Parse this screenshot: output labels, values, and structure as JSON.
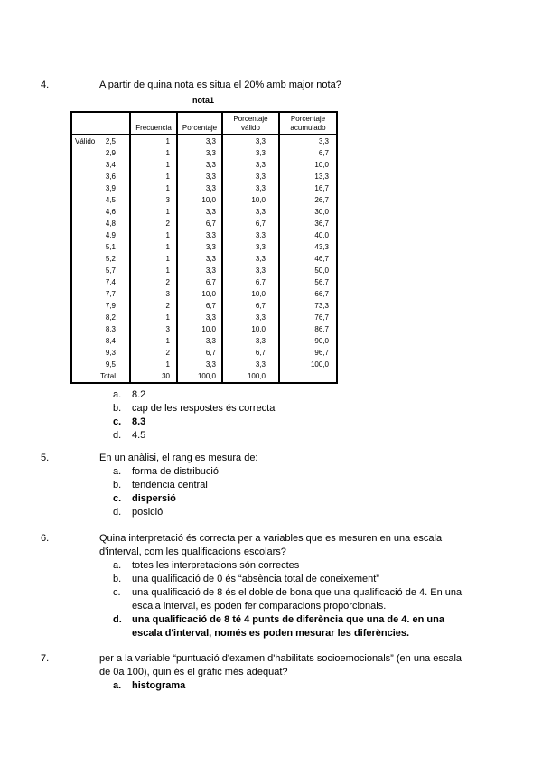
{
  "document": {
    "background": "#ffffff",
    "text_color": "#000000"
  },
  "table": {
    "title": "nota1",
    "row_section_label": "Válido",
    "headers": {
      "frequency": "Frecuencia",
      "percent": "Porcentaje",
      "valid_percent": "Porcentaje válido",
      "cum_percent": "Porcentaje acumulado"
    },
    "rows": [
      [
        "2,5",
        "1",
        "3,3",
        "3,3",
        "3,3"
      ],
      [
        "2,9",
        "1",
        "3,3",
        "3,3",
        "6,7"
      ],
      [
        "3,4",
        "1",
        "3,3",
        "3,3",
        "10,0"
      ],
      [
        "3,6",
        "1",
        "3,3",
        "3,3",
        "13,3"
      ],
      [
        "3,9",
        "1",
        "3,3",
        "3,3",
        "16,7"
      ],
      [
        "4,5",
        "3",
        "10,0",
        "10,0",
        "26,7"
      ],
      [
        "4,6",
        "1",
        "3,3",
        "3,3",
        "30,0"
      ],
      [
        "4,8",
        "2",
        "6,7",
        "6,7",
        "36,7"
      ],
      [
        "4,9",
        "1",
        "3,3",
        "3,3",
        "40,0"
      ],
      [
        "5,1",
        "1",
        "3,3",
        "3,3",
        "43,3"
      ],
      [
        "5,2",
        "1",
        "3,3",
        "3,3",
        "46,7"
      ],
      [
        "5,7",
        "1",
        "3,3",
        "3,3",
        "50,0"
      ],
      [
        "7,4",
        "2",
        "6,7",
        "6,7",
        "56,7"
      ],
      [
        "7,7",
        "3",
        "10,0",
        "10,0",
        "66,7"
      ],
      [
        "7,9",
        "2",
        "6,7",
        "6,7",
        "73,3"
      ],
      [
        "8,2",
        "1",
        "3,3",
        "3,3",
        "76,7"
      ],
      [
        "8,3",
        "3",
        "10,0",
        "10,0",
        "86,7"
      ],
      [
        "8,4",
        "1",
        "3,3",
        "3,3",
        "90,0"
      ],
      [
        "9,3",
        "2",
        "6,7",
        "6,7",
        "96,7"
      ],
      [
        "9,5",
        "1",
        "3,3",
        "3,3",
        "100,0"
      ]
    ],
    "total": [
      "Total",
      "30",
      "100,0",
      "100,0",
      ""
    ]
  },
  "questions": [
    {
      "number": "4.",
      "lines": [
        "A partir de quina nota es situa el 20% amb major nota?"
      ],
      "options": [
        {
          "letter": "a.",
          "lines": [
            "8.2"
          ],
          "bold": false
        },
        {
          "letter": "b.",
          "lines": [
            "cap de les respostes és correcta"
          ],
          "bold": false
        },
        {
          "letter": "c.",
          "lines": [
            "8.3"
          ],
          "bold": true
        },
        {
          "letter": "d.",
          "lines": [
            "4.5"
          ],
          "bold": false
        }
      ]
    },
    {
      "number": "5.",
      "lines": [
        "En un anàlisi, el rang es mesura de:"
      ],
      "options": [
        {
          "letter": "a.",
          "lines": [
            "forma de distribució"
          ],
          "bold": false
        },
        {
          "letter": "b.",
          "lines": [
            "tendència central"
          ],
          "bold": false
        },
        {
          "letter": "c.",
          "lines": [
            "dispersió"
          ],
          "bold": true
        },
        {
          "letter": "d.",
          "lines": [
            "posició"
          ],
          "bold": false
        }
      ]
    },
    {
      "number": "6.",
      "lines": [
        "Quina interpretació és correcta per a variables que es mesuren en una escala",
        "d'interval, com les qualificacions escolars?"
      ],
      "options": [
        {
          "letter": "a.",
          "lines": [
            "totes les interpretacions són correctes"
          ],
          "bold": false
        },
        {
          "letter": "b.",
          "lines": [
            "una qualificació de 0 és “absència total de coneixement”"
          ],
          "bold": false
        },
        {
          "letter": "c.",
          "lines": [
            "una qualificació de 8 és el doble de bona que una qualificació de 4. En una",
            "escala interval, es poden fer comparacions proporcionals."
          ],
          "bold": false
        },
        {
          "letter": "d.",
          "lines": [
            "una qualificació de 8 té 4 punts de diferència que una de 4. en una",
            "escala d'interval, només es poden mesurar les diferències."
          ],
          "bold": true
        }
      ]
    },
    {
      "number": "7.",
      "lines": [
        "per a la variable “puntuació d'examen d'habilitats socioemocionals” (en una escala",
        "de 0a 100), quin és el gràfic més adequat?"
      ],
      "options": [
        {
          "letter": "a.",
          "lines": [
            "histograma"
          ],
          "bold": true
        }
      ]
    }
  ]
}
